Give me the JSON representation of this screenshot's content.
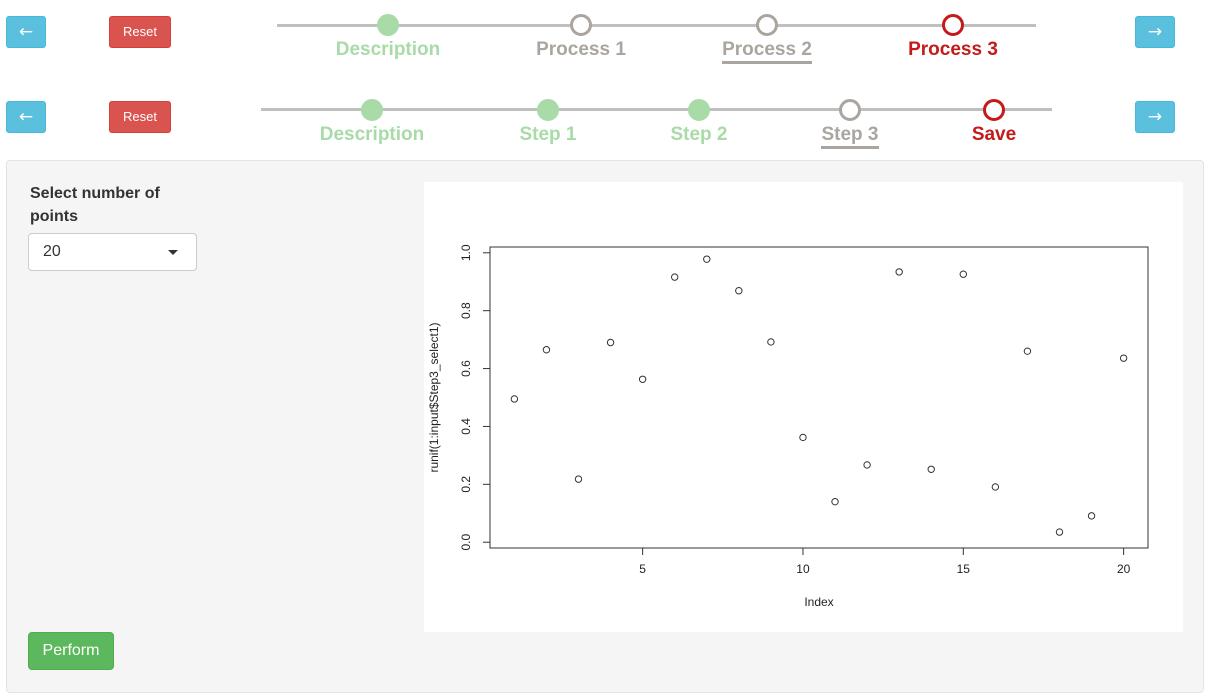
{
  "wizard_top": {
    "back_arrow": "←",
    "reset_label": "Reset",
    "next_arrow": "→",
    "steps": [
      {
        "label": "Description",
        "state": "done"
      },
      {
        "label": "Process 1",
        "state": "todo"
      },
      {
        "label": "Process 2",
        "state": "todo"
      },
      {
        "label": "Process 3",
        "state": "active"
      }
    ]
  },
  "wizard_bottom": {
    "back_arrow": "←",
    "reset_label": "Reset",
    "next_arrow": "→",
    "steps": [
      {
        "label": "Description",
        "state": "done"
      },
      {
        "label": "Step 1",
        "state": "done"
      },
      {
        "label": "Step 2",
        "state": "done"
      },
      {
        "label": "Step 3",
        "state": "todo"
      },
      {
        "label": "Save",
        "state": "active"
      }
    ]
  },
  "controls": {
    "select_label": "Select number of points",
    "select_value": "20",
    "perform_label": "Perform"
  },
  "colors": {
    "done": "#a8dba8",
    "todo": "#aaa59f",
    "active": "#c41a1a",
    "info_button": "#5bc0de",
    "danger_button": "#d9534f",
    "success_button": "#5cb85c"
  },
  "chart_data": {
    "type": "scatter",
    "xlabel": "Index",
    "ylabel": "runif(1:input$Step3_select1)",
    "xlim": [
      0.24,
      20.76
    ],
    "ylim": [
      -0.02,
      1.02
    ],
    "x_ticks": [
      5,
      10,
      15,
      20
    ],
    "y_ticks": [
      "0.0",
      "0.2",
      "0.4",
      "0.6",
      "0.8",
      "1.0"
    ],
    "x": [
      1,
      2,
      3,
      4,
      5,
      6,
      7,
      8,
      9,
      10,
      11,
      12,
      13,
      14,
      15,
      16,
      17,
      18,
      19,
      20
    ],
    "y": [
      0.495,
      0.665,
      0.218,
      0.69,
      0.563,
      0.916,
      0.978,
      0.869,
      0.692,
      0.362,
      0.14,
      0.267,
      0.934,
      0.252,
      0.926,
      0.191,
      0.66,
      0.035,
      0.091,
      0.636
    ],
    "grid": false,
    "legend": "none"
  }
}
